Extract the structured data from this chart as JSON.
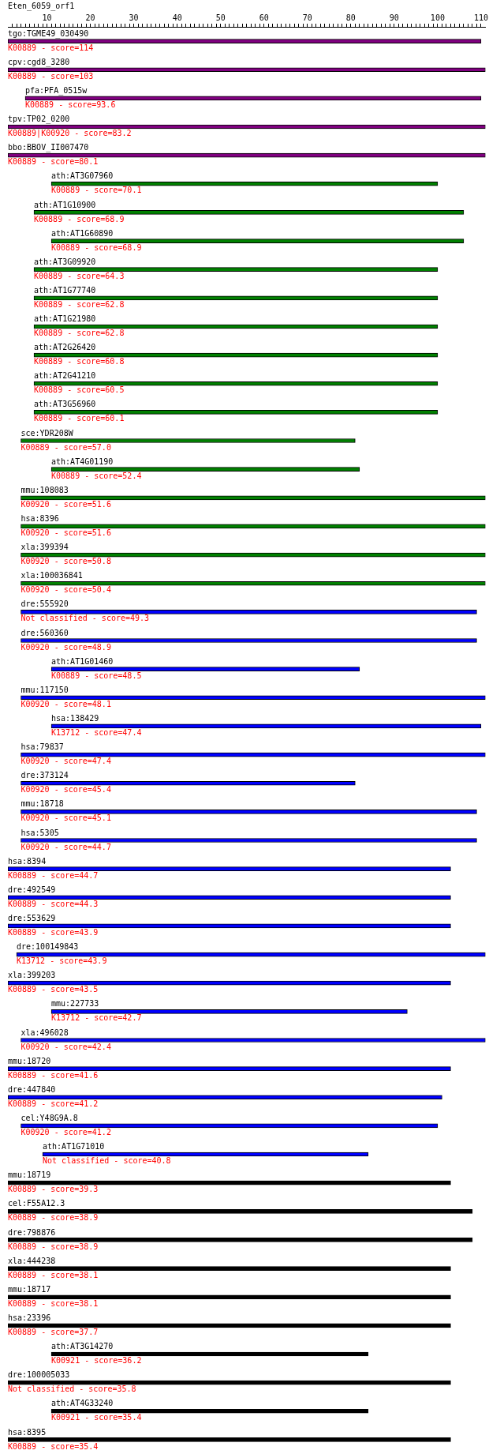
{
  "chart_data": {
    "type": "bar",
    "orientation": "horizontal",
    "title": "Eten_6059_orf1",
    "categories": [
      "tgo:TGME49_030490",
      "cpv:cgd8_3280",
      "pfa:PFA_0515w",
      "tpv:TP02_0200",
      "bbo:BBOV_II007470",
      "ath:AT3G07960",
      "ath:AT1G10900",
      "ath:AT1G60890",
      "ath:AT3G09920",
      "ath:AT1G77740",
      "ath:AT1G21980",
      "ath:AT2G26420",
      "ath:AT2G41210",
      "ath:AT3G56960",
      "sce:YDR208W",
      "ath:AT4G01190",
      "mmu:108083",
      "hsa:8396",
      "xla:399394",
      "xla:100036841",
      "dre:555920",
      "dre:560360",
      "ath:AT1G01460",
      "mmu:117150",
      "hsa:138429",
      "hsa:79837",
      "dre:373124",
      "mmu:18718",
      "hsa:5305",
      "hsa:8394",
      "dre:492549",
      "dre:553629",
      "dre:100149843",
      "xla:399203",
      "mmu:227733",
      "xla:496028",
      "mmu:18720",
      "dre:447840",
      "cel:Y48G9A.8",
      "ath:AT1G71010",
      "mmu:18719",
      "cel:F55A12.3",
      "dre:798876",
      "xla:444238",
      "mmu:18717",
      "hsa:23396",
      "ath:AT3G14270",
      "dre:100005033",
      "ath:AT4G33240",
      "hsa:8395"
    ],
    "base": [
      1,
      1,
      5,
      1,
      1,
      11,
      7,
      11,
      7,
      7,
      7,
      7,
      7,
      7,
      4,
      11,
      4,
      4,
      4,
      4,
      4,
      4,
      11,
      4,
      11,
      4,
      4,
      4,
      4,
      1,
      1,
      1,
      3,
      1,
      11,
      4,
      1,
      1,
      4,
      9,
      1,
      1,
      1,
      1,
      1,
      1,
      11,
      1,
      11,
      1
    ],
    "values": [
      109,
      110,
      105,
      110,
      110,
      89,
      99,
      95,
      93,
      93,
      93,
      93,
      93,
      93,
      77,
      71,
      107,
      107,
      107,
      107,
      105,
      105,
      71,
      107,
      99,
      107,
      77,
      105,
      105,
      102,
      102,
      102,
      108,
      102,
      82,
      107,
      102,
      100,
      96,
      75,
      102,
      107,
      107,
      102,
      102,
      102,
      73,
      102,
      73,
      102
    ],
    "colors": [
      "#800080",
      "#800080",
      "#800080",
      "#800080",
      "#800080",
      "#008000",
      "#008000",
      "#008000",
      "#008000",
      "#008000",
      "#008000",
      "#008000",
      "#008000",
      "#008000",
      "#008000",
      "#008000",
      "#008000",
      "#008000",
      "#008000",
      "#008000",
      "#0000ff",
      "#0000ff",
      "#0000ff",
      "#0000ff",
      "#0000ff",
      "#0000ff",
      "#0000ff",
      "#0000ff",
      "#0000ff",
      "#0000ff",
      "#0000ff",
      "#0000ff",
      "#0000ff",
      "#0000ff",
      "#0000ff",
      "#0000ff",
      "#0000ff",
      "#0000ff",
      "#0000ff",
      "#0000ff",
      "#000000",
      "#000000",
      "#000000",
      "#000000",
      "#000000",
      "#000000",
      "#000000",
      "#000000",
      "#000000",
      "#000000"
    ],
    "xlim": [
      1,
      111
    ],
    "xticks": [
      {
        "value": 2,
        "label": null
      },
      {
        "value": 3,
        "label": null
      },
      {
        "value": 4,
        "label": null
      },
      {
        "value": 5,
        "label": null
      },
      {
        "value": 6,
        "label": null
      },
      {
        "value": 7,
        "label": null
      },
      {
        "value": 8,
        "label": null
      },
      {
        "value": 9,
        "label": null
      },
      10,
      {
        "value": 11,
        "label": null
      },
      {
        "value": 12,
        "label": null
      },
      {
        "value": 13,
        "label": null
      },
      {
        "value": 14,
        "label": null
      },
      {
        "value": 15,
        "label": null
      },
      {
        "value": 16,
        "label": null
      },
      {
        "value": 17,
        "label": null
      },
      {
        "value": 18,
        "label": null
      },
      {
        "value": 19,
        "label": null
      },
      20,
      {
        "value": 21,
        "label": null
      },
      {
        "value": 22,
        "label": null
      },
      {
        "value": 23,
        "label": null
      },
      {
        "value": 24,
        "label": null
      },
      {
        "value": 25,
        "label": null
      },
      {
        "value": 26,
        "label": null
      },
      {
        "value": 27,
        "label": null
      },
      {
        "value": 28,
        "label": null
      },
      {
        "value": 29,
        "label": null
      },
      30,
      {
        "value": 31,
        "label": null
      },
      {
        "value": 32,
        "label": null
      },
      {
        "value": 33,
        "label": null
      },
      {
        "value": 34,
        "label": null
      },
      {
        "value": 35,
        "label": null
      },
      {
        "value": 36,
        "label": null
      },
      {
        "value": 37,
        "label": null
      },
      {
        "value": 38,
        "label": null
      },
      {
        "value": 39,
        "label": null
      },
      40,
      {
        "value": 41,
        "label": null
      },
      {
        "value": 42,
        "label": null
      },
      {
        "value": 43,
        "label": null
      },
      {
        "value": 44,
        "label": null
      },
      {
        "value": 45,
        "label": null
      },
      {
        "value": 46,
        "label": null
      },
      {
        "value": 47,
        "label": null
      },
      {
        "value": 48,
        "label": null
      },
      {
        "value": 49,
        "label": null
      },
      50,
      {
        "value": 51,
        "label": null
      },
      {
        "value": 52,
        "label": null
      },
      {
        "value": 53,
        "label": null
      },
      {
        "value": 54,
        "label": null
      },
      {
        "value": 55,
        "label": null
      },
      {
        "value": 56,
        "label": null
      },
      {
        "value": 57,
        "label": null
      },
      {
        "value": 58,
        "label": null
      },
      {
        "value": 59,
        "label": null
      },
      60,
      {
        "value": 61,
        "label": null
      },
      {
        "value": 62,
        "label": null
      },
      {
        "value": 63,
        "label": null
      },
      {
        "value": 64,
        "label": null
      },
      {
        "value": 65,
        "label": null
      },
      {
        "value": 66,
        "label": null
      },
      {
        "value": 67,
        "label": null
      },
      {
        "value": 68,
        "label": null
      },
      {
        "value": 69,
        "label": null
      },
      70,
      {
        "value": 71,
        "label": null
      },
      {
        "value": 72,
        "label": null
      },
      {
        "value": 73,
        "label": null
      },
      {
        "value": 74,
        "label": null
      },
      {
        "value": 75,
        "label": null
      },
      {
        "value": 76,
        "label": null
      },
      {
        "value": 77,
        "label": null
      },
      {
        "value": 78,
        "label": null
      },
      {
        "value": 79,
        "label": null
      },
      80,
      {
        "value": 81,
        "label": null
      },
      {
        "value": 82,
        "label": null
      },
      {
        "value": 83,
        "label": null
      },
      {
        "value": 84,
        "label": null
      },
      {
        "value": 85,
        "label": null
      },
      {
        "value": 86,
        "label": null
      },
      {
        "value": 87,
        "label": null
      },
      {
        "value": 88,
        "label": null
      },
      {
        "value": 89,
        "label": null
      },
      90,
      {
        "value": 91,
        "label": null
      },
      {
        "value": 92,
        "label": null
      },
      {
        "value": 93,
        "label": null
      },
      {
        "value": 94,
        "label": null
      },
      {
        "value": 95,
        "label": null
      },
      {
        "value": 96,
        "label": null
      },
      {
        "value": 97,
        "label": null
      },
      {
        "value": 98,
        "label": null
      },
      {
        "value": 99,
        "label": null
      },
      100,
      {
        "value": 101,
        "label": null
      },
      {
        "value": 102,
        "label": null
      },
      {
        "value": 103,
        "label": null
      },
      {
        "value": 104,
        "label": null
      },
      {
        "value": 105,
        "label": null
      },
      {
        "value": 106,
        "label": null
      },
      {
        "value": 107,
        "label": null
      },
      {
        "value": 108,
        "label": null
      },
      {
        "value": 109,
        "label": null
      },
      110
    ],
    "annotations": [
      "K00889 - score=114",
      "K00889 - score=103",
      "K00889 - score=93.6",
      "K00889|K00920 - score=83.2",
      "K00889 - score=80.1",
      "K00889 - score=70.1",
      "K00889 - score=68.9",
      "K00889 - score=68.9",
      "K00889 - score=64.3",
      "K00889 - score=62.8",
      "K00889 - score=62.8",
      "K00889 - score=60.8",
      "K00889 - score=60.5",
      "K00889 - score=60.1",
      "K00889 - score=57.0",
      "K00889 - score=52.4",
      "K00920 - score=51.6",
      "K00920 - score=51.6",
      "K00920 - score=50.8",
      "K00920 - score=50.4",
      "Not classified - score=49.3",
      "K00920 - score=48.9",
      "K00889 - score=48.5",
      "K00920 - score=48.1",
      "K13712 - score=47.4",
      "K00920 - score=47.4",
      "K00920 - score=45.4",
      "K00920 - score=45.1",
      "K00920 - score=44.7",
      "K00889 - score=44.7",
      "K00889 - score=44.3",
      "K00889 - score=43.9",
      "K13712 - score=43.9",
      "K00889 - score=43.5",
      "K13712 - score=42.7",
      "K00920 - score=42.4",
      "K00889 - score=41.6",
      "K00889 - score=41.2",
      "K00920 - score=41.2",
      "Not classified - score=40.8",
      "K00889 - score=39.3",
      "K00889 - score=38.9",
      "K00889 - score=38.9",
      "K00889 - score=38.1",
      "K00889 - score=38.1",
      "K00889 - score=37.7",
      "K00921 - score=36.2",
      "Not classified - score=35.8",
      "K00921 - score=35.4",
      "K00889 - score=35.4"
    ]
  }
}
